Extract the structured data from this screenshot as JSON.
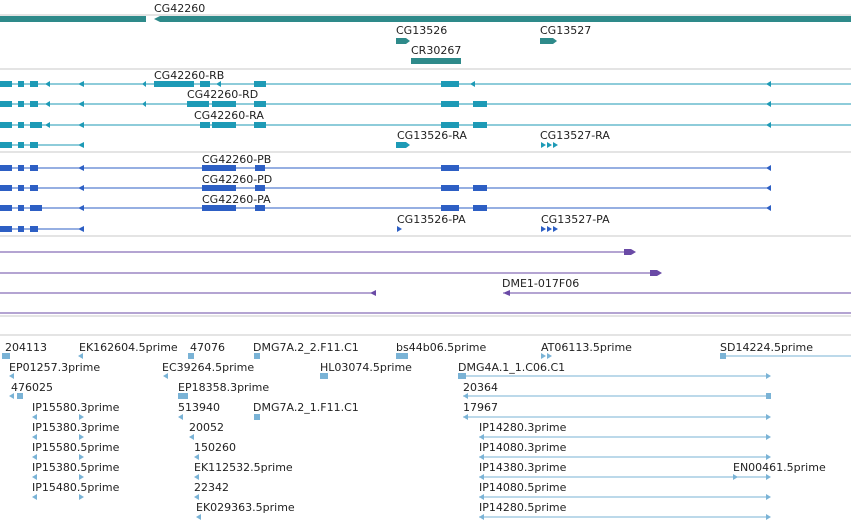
{
  "colors": {
    "gene": "#2e8a8a",
    "transcript": "#1d9ab6",
    "protein": "#2d5fc4",
    "clone": "#6a4aa6",
    "est": "#7ab3d6",
    "divider": "#c8c8c8"
  },
  "gene_track": {
    "labels": [
      "CG42260",
      "CG13526",
      "CG13527",
      "CR30267"
    ]
  },
  "transcripts": {
    "labels": [
      "CG42260-RB",
      "CG42260-RD",
      "CG42260-RA",
      "CG13526-RA",
      "CG13527-RA"
    ]
  },
  "proteins": {
    "labels": [
      "CG42260-PB",
      "CG42260-PD",
      "CG42260-PA",
      "CG13526-PA",
      "CG13527-PA"
    ]
  },
  "clones": {
    "labels": [
      "DME1-017F06"
    ]
  },
  "ests": {
    "labels": [
      "204113",
      "EK162604.5prime",
      "47076",
      "DMG7A.2_2.F11.C1",
      "bs44b06.5prime",
      "AT06113.5prime",
      "SD14224.5prime",
      "EP01257.3prime",
      "EC39264.5prime",
      "HL03074.5prime",
      "DMG4A.1_1.C06.C1",
      "476025",
      "EP18358.3prime",
      "20364",
      "IP15580.3prime",
      "513940",
      "DMG7A.2_1.F11.C1",
      "17967",
      "IP15380.3prime",
      "20052",
      "IP14280.3prime",
      "IP15580.5prime",
      "150260",
      "IP14080.3prime",
      "IP15380.5prime",
      "EK112532.5prime",
      "IP14380.3prime",
      "EN00461.5prime",
      "IP15480.5prime",
      "22342",
      "IP14080.5prime",
      "EK029363.5prime",
      "IP14280.5prime"
    ]
  }
}
